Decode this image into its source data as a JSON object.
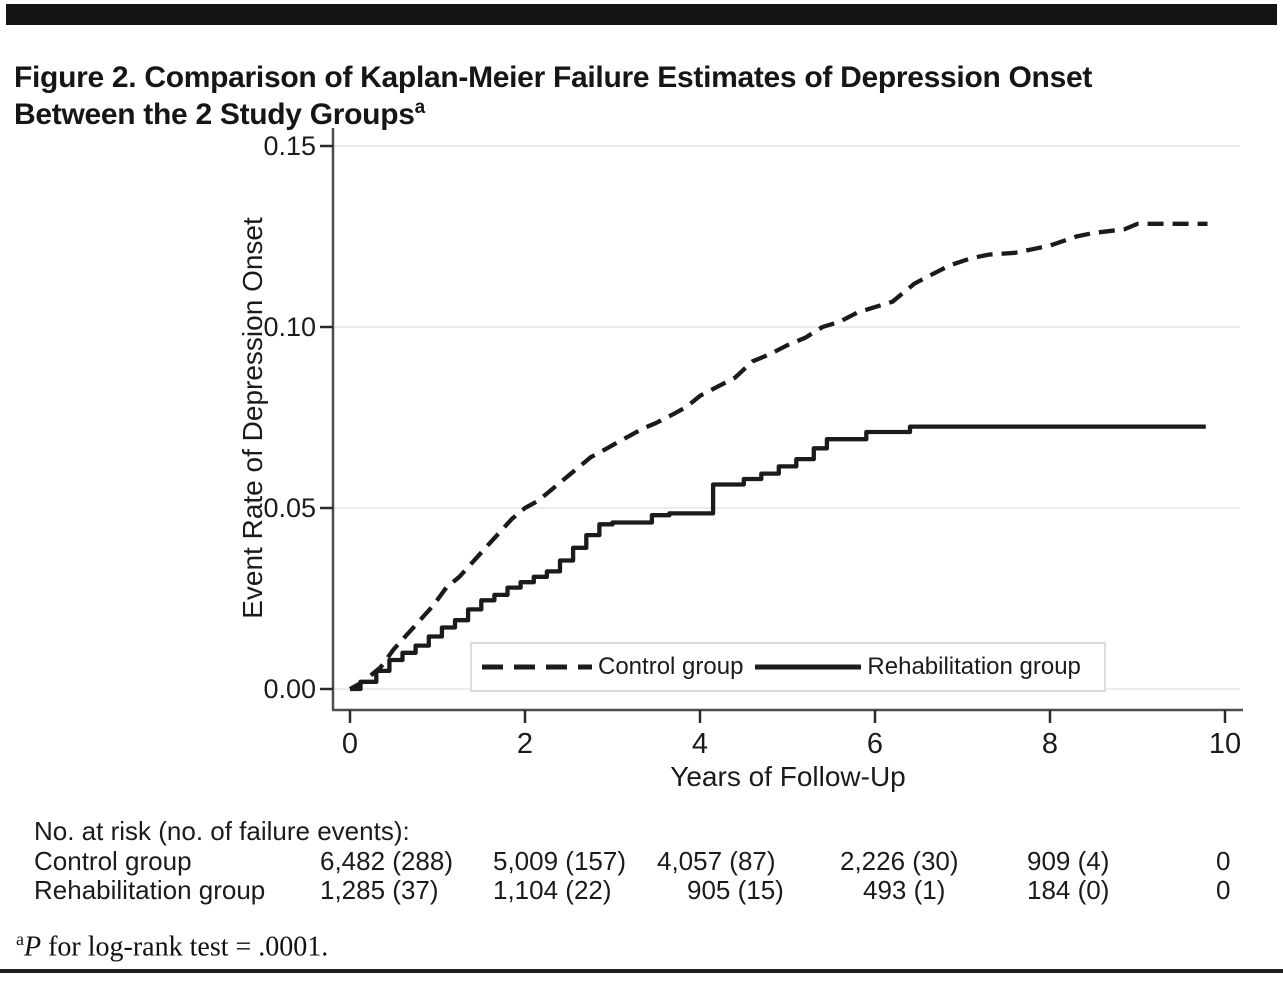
{
  "title": {
    "text": "Figure 2. Comparison of Kaplan-Meier Failure Estimates of Depression Onset\nBetween the 2 Study Groups",
    "superscript": "a"
  },
  "chart_data": {
    "type": "line",
    "subtype": "kaplan-meier-failure",
    "xlabel": "Years of Follow-Up",
    "ylabel": "Event Rate of Depression Onset",
    "xlim": [
      0,
      10
    ],
    "ylim": [
      0,
      0.15
    ],
    "xticks": {
      "values": [
        0,
        2,
        4,
        6,
        8,
        10
      ],
      "labels": [
        "0",
        "2",
        "4",
        "6",
        "8",
        "10"
      ]
    },
    "yticks": {
      "values": [
        0,
        0.05,
        0.1,
        0.15
      ],
      "labels": [
        "0.00",
        "0.05",
        "0.10",
        "0.15"
      ]
    },
    "grid": "horizontal gridlines at each y tick, light gray",
    "legend_position": "inside bottom center",
    "colors": {
      "curve": "#1b1b1b",
      "grid": "#ececec",
      "axis": "#4d4d4f",
      "tick": "#2b2b2b"
    },
    "series": [
      {
        "name": "Control group",
        "style": "dashed",
        "step": false,
        "points": [
          [
            0,
            0
          ],
          [
            0.15,
            0.002
          ],
          [
            0.35,
            0.006
          ],
          [
            0.5,
            0.011
          ],
          [
            0.65,
            0.015
          ],
          [
            0.8,
            0.019
          ],
          [
            0.95,
            0.023
          ],
          [
            1.1,
            0.028
          ],
          [
            1.25,
            0.031
          ],
          [
            1.4,
            0.035
          ],
          [
            1.55,
            0.039
          ],
          [
            1.7,
            0.043
          ],
          [
            1.85,
            0.047
          ],
          [
            2.0,
            0.05
          ],
          [
            2.15,
            0.052
          ],
          [
            2.3,
            0.055
          ],
          [
            2.45,
            0.058
          ],
          [
            2.6,
            0.061
          ],
          [
            2.75,
            0.064
          ],
          [
            2.9,
            0.066
          ],
          [
            3.05,
            0.068
          ],
          [
            3.2,
            0.07
          ],
          [
            3.35,
            0.072
          ],
          [
            3.5,
            0.0735
          ],
          [
            3.7,
            0.076
          ],
          [
            3.85,
            0.078
          ],
          [
            4.0,
            0.081
          ],
          [
            4.2,
            0.0835
          ],
          [
            4.4,
            0.086
          ],
          [
            4.6,
            0.0905
          ],
          [
            4.8,
            0.0925
          ],
          [
            5.0,
            0.095
          ],
          [
            5.2,
            0.097
          ],
          [
            5.4,
            0.1
          ],
          [
            5.6,
            0.1015
          ],
          [
            5.8,
            0.104
          ],
          [
            6.0,
            0.1055
          ],
          [
            6.2,
            0.107
          ],
          [
            6.45,
            0.112
          ],
          [
            6.65,
            0.1145
          ],
          [
            6.85,
            0.117
          ],
          [
            7.1,
            0.119
          ],
          [
            7.3,
            0.12
          ],
          [
            7.6,
            0.1205
          ],
          [
            7.8,
            0.1215
          ],
          [
            8.0,
            0.1225
          ],
          [
            8.3,
            0.125
          ],
          [
            8.5,
            0.126
          ],
          [
            8.85,
            0.127
          ],
          [
            9.0,
            0.1285
          ],
          [
            9.4,
            0.1285
          ],
          [
            9.8,
            0.1285
          ]
        ]
      },
      {
        "name": "Rehabilitation group",
        "style": "solid",
        "step": true,
        "points": [
          [
            0,
            0
          ],
          [
            0.12,
            0.002
          ],
          [
            0.3,
            0.005
          ],
          [
            0.45,
            0.008
          ],
          [
            0.6,
            0.01
          ],
          [
            0.75,
            0.012
          ],
          [
            0.9,
            0.0145
          ],
          [
            1.05,
            0.017
          ],
          [
            1.2,
            0.019
          ],
          [
            1.35,
            0.022
          ],
          [
            1.5,
            0.0245
          ],
          [
            1.65,
            0.026
          ],
          [
            1.8,
            0.028
          ],
          [
            1.95,
            0.0295
          ],
          [
            2.1,
            0.031
          ],
          [
            2.25,
            0.0325
          ],
          [
            2.4,
            0.0355
          ],
          [
            2.55,
            0.039
          ],
          [
            2.7,
            0.0425
          ],
          [
            2.85,
            0.0455
          ],
          [
            3.0,
            0.046
          ],
          [
            3.45,
            0.048
          ],
          [
            3.65,
            0.0485
          ],
          [
            4.15,
            0.0565
          ],
          [
            4.5,
            0.058
          ],
          [
            4.7,
            0.0595
          ],
          [
            4.9,
            0.0615
          ],
          [
            5.1,
            0.0635
          ],
          [
            5.3,
            0.0665
          ],
          [
            5.45,
            0.069
          ],
          [
            5.9,
            0.071
          ],
          [
            6.4,
            0.0725
          ],
          [
            9.78,
            0.0725
          ]
        ]
      }
    ]
  },
  "risk_table": {
    "header": "No. at risk (no. of failure events):",
    "rows": [
      {
        "label": "Control group",
        "values": [
          "6,482 (288)",
          "5,009 (157)",
          "4,057 (87)",
          "2,226 (30)",
          "909 (4)",
          "0"
        ]
      },
      {
        "label": "Rehabilitation group",
        "values": [
          "1,285 (37)",
          "1,104 (22)",
          "905 (15)",
          "493 (1)",
          "184 (0)",
          "0"
        ]
      }
    ]
  },
  "footnote": {
    "marker": "a",
    "p_symbol": "P",
    "text": " for log-rank test = .0001."
  }
}
